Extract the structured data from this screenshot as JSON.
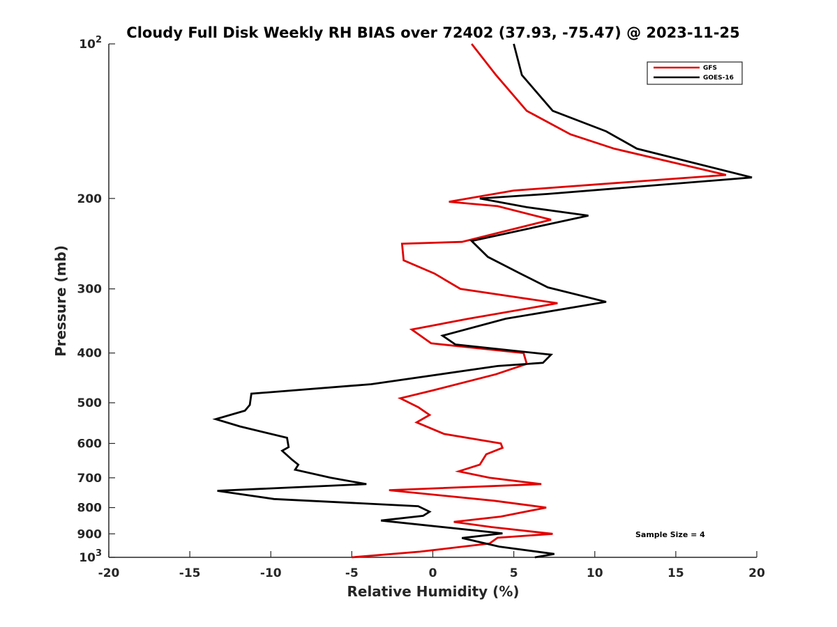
{
  "chart_data": {
    "type": "line",
    "title": "Cloudy Full Disk Weekly RH BIAS over 72402 (37.93, -75.47) @ 2023-11-25",
    "xlabel": "Relative Humidity (%)",
    "ylabel": "Pressure (mb)",
    "xlim": [
      -20,
      20
    ],
    "ylim": [
      100,
      1000
    ],
    "y_scale": "log",
    "y_reversed": true,
    "grid": false,
    "legend_position": "top-right",
    "x_ticks": [
      "-20",
      "-15",
      "-10",
      "-5",
      "0",
      "5",
      "10",
      "15",
      "20"
    ],
    "y_ticks": [
      {
        "value": 100,
        "base": "10",
        "exp": "2"
      },
      {
        "value": 200,
        "label": "200"
      },
      {
        "value": 300,
        "label": "300"
      },
      {
        "value": 400,
        "label": "400"
      },
      {
        "value": 500,
        "label": "500"
      },
      {
        "value": 600,
        "label": "600"
      },
      {
        "value": 700,
        "label": "700"
      },
      {
        "value": 800,
        "label": "800"
      },
      {
        "value": 900,
        "label": "900"
      },
      {
        "value": 1000,
        "base": "10",
        "exp": "3"
      }
    ],
    "annotation": "Sample Size = 4",
    "series": [
      {
        "name": "GFS",
        "color": "#e00000",
        "points": [
          [
            2.4,
            100
          ],
          [
            3.9,
            115
          ],
          [
            5.8,
            135
          ],
          [
            8.5,
            150
          ],
          [
            11.2,
            160
          ],
          [
            18.1,
            180
          ],
          [
            5.0,
            193
          ],
          [
            1.0,
            203
          ],
          [
            4.0,
            207
          ],
          [
            7.3,
            220
          ],
          [
            1.8,
            243
          ],
          [
            -1.9,
            245
          ],
          [
            -1.8,
            264
          ],
          [
            0.1,
            280
          ],
          [
            1.7,
            300
          ],
          [
            7.7,
            320
          ],
          [
            2.2,
            343
          ],
          [
            -1.3,
            360
          ],
          [
            -0.1,
            383
          ],
          [
            5.6,
            400
          ],
          [
            5.8,
            420
          ],
          [
            3.9,
            440
          ],
          [
            0.0,
            473
          ],
          [
            -2.0,
            490
          ],
          [
            -0.9,
            510
          ],
          [
            -0.2,
            528
          ],
          [
            -1.0,
            546
          ],
          [
            0.7,
            575
          ],
          [
            4.2,
            600
          ],
          [
            4.3,
            612
          ],
          [
            3.3,
            630
          ],
          [
            2.9,
            660
          ],
          [
            1.6,
            680
          ],
          [
            3.5,
            700
          ],
          [
            6.7,
            720
          ],
          [
            -2.7,
            740
          ],
          [
            3.8,
            776
          ],
          [
            7.0,
            800
          ],
          [
            4.2,
            833
          ],
          [
            1.3,
            853
          ],
          [
            3.6,
            873
          ],
          [
            7.4,
            900
          ],
          [
            4.0,
            916
          ],
          [
            3.5,
            940
          ],
          [
            -0.8,
            975
          ],
          [
            -5.0,
            1000
          ]
        ]
      },
      {
        "name": "GOES-16",
        "color": "#000000",
        "points": [
          [
            5.0,
            100
          ],
          [
            5.5,
            115
          ],
          [
            7.4,
            135
          ],
          [
            10.7,
            148
          ],
          [
            12.6,
            160
          ],
          [
            19.7,
            182
          ],
          [
            7.1,
            196
          ],
          [
            2.9,
            200
          ],
          [
            5.8,
            208
          ],
          [
            9.6,
            216
          ],
          [
            2.4,
            242
          ],
          [
            3.4,
            260
          ],
          [
            5.4,
            280
          ],
          [
            7.1,
            298
          ],
          [
            10.7,
            318
          ],
          [
            4.5,
            343
          ],
          [
            0.6,
            370
          ],
          [
            1.4,
            385
          ],
          [
            7.3,
            403
          ],
          [
            6.8,
            418
          ],
          [
            4.0,
            424
          ],
          [
            -3.8,
            460
          ],
          [
            -11.2,
            480
          ],
          [
            -11.3,
            505
          ],
          [
            -11.6,
            518
          ],
          [
            -13.4,
            538
          ],
          [
            -11.9,
            556
          ],
          [
            -9.0,
            585
          ],
          [
            -8.9,
            610
          ],
          [
            -9.3,
            620
          ],
          [
            -8.7,
            645
          ],
          [
            -8.3,
            660
          ],
          [
            -8.5,
            675
          ],
          [
            -6.3,
            700
          ],
          [
            -4.1,
            720
          ],
          [
            -13.3,
            742
          ],
          [
            -9.8,
            770
          ],
          [
            -0.9,
            795
          ],
          [
            -0.2,
            815
          ],
          [
            -0.6,
            830
          ],
          [
            -3.2,
            848
          ],
          [
            4.3,
            898
          ],
          [
            1.8,
            917
          ],
          [
            4.1,
            953
          ],
          [
            7.5,
            985
          ],
          [
            6.3,
            1000
          ]
        ]
      }
    ]
  }
}
